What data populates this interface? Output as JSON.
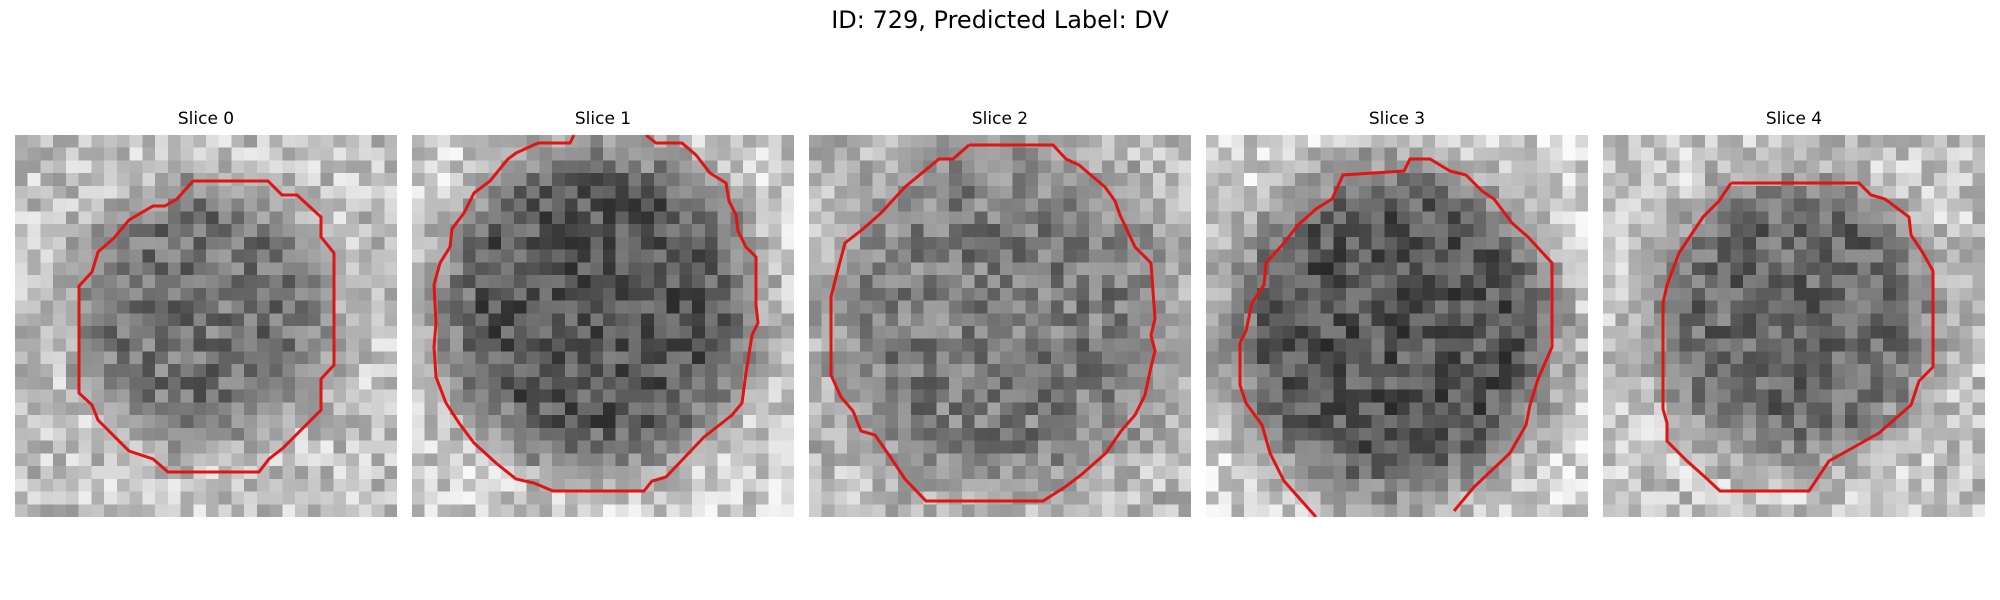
{
  "figure": {
    "title": "ID: 729, Predicted Label: DV",
    "contour_color": "#e01414",
    "grid_size": 30,
    "slices": [
      {
        "title": "Slice 0",
        "seed": 11,
        "lesion": {
          "cx": 15,
          "cy": 14,
          "r": 10,
          "dark": 0.45
        },
        "bright_bg": 0.55
      },
      {
        "title": "Slice 1",
        "seed": 23,
        "lesion": {
          "cx": 14.5,
          "cy": 13.5,
          "r": 12.5,
          "dark": 0.72
        },
        "bright_bg": 0.72
      },
      {
        "title": "Slice 2",
        "seed": 37,
        "lesion": {
          "cx": 15,
          "cy": 14.5,
          "r": 13,
          "dark": 0.35
        },
        "bright_bg": 0.4
      },
      {
        "title": "Slice 3",
        "seed": 41,
        "lesion": {
          "cx": 14.5,
          "cy": 15.5,
          "r": 13,
          "dark": 0.75
        },
        "bright_bg": 0.8
      },
      {
        "title": "Slice 4",
        "seed": 53,
        "lesion": {
          "cx": 15,
          "cy": 14.5,
          "r": 11,
          "dark": 0.55
        },
        "bright_bg": 0.6
      }
    ]
  }
}
